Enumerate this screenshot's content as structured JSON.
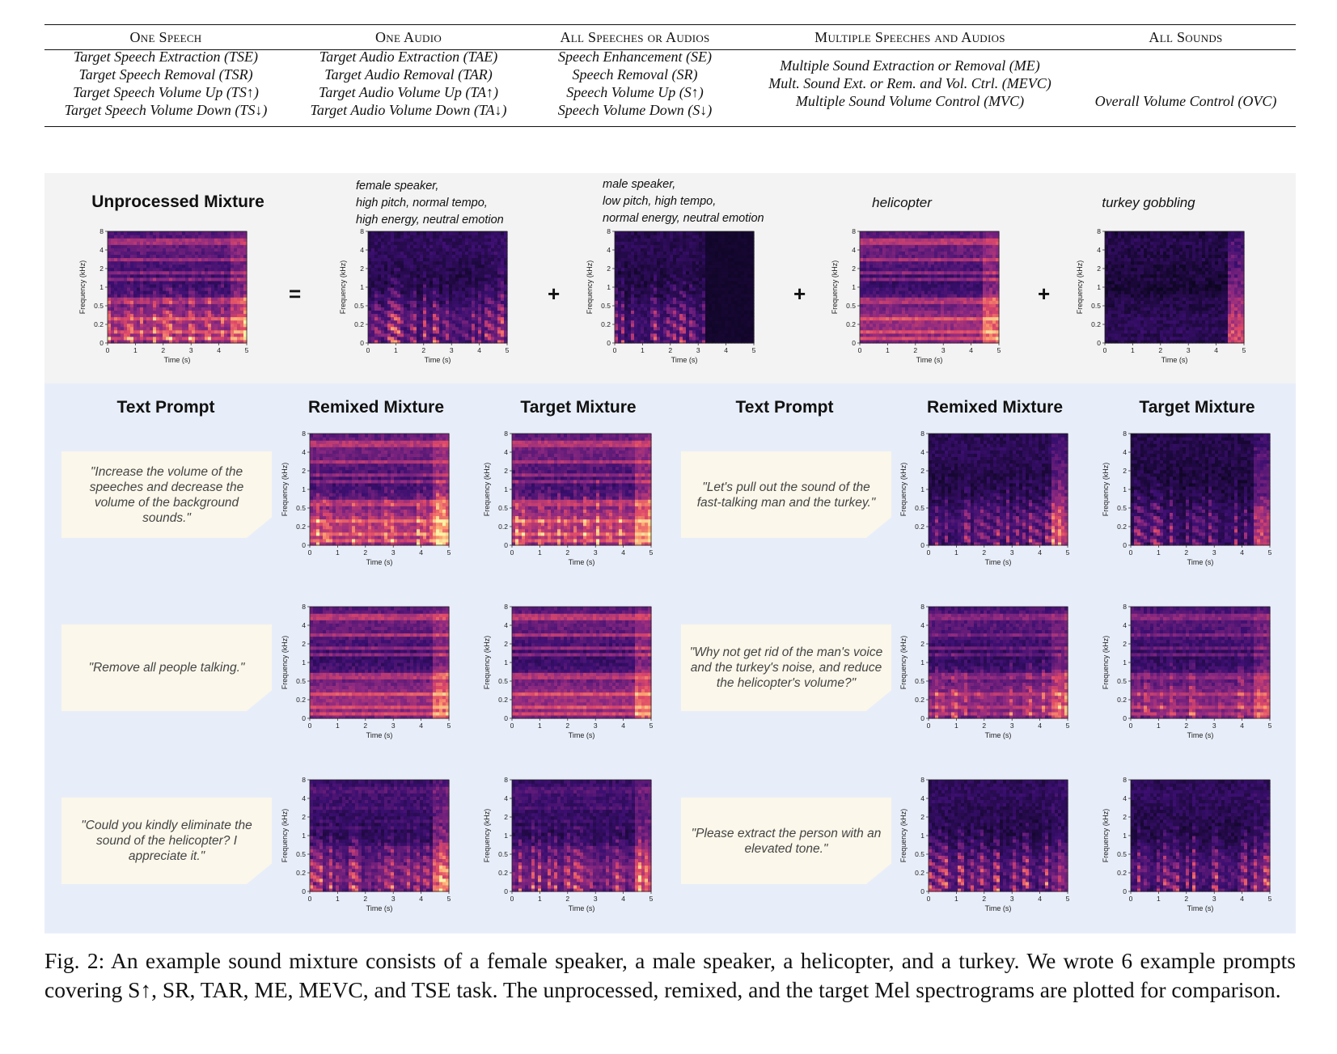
{
  "task_table": {
    "columns": [
      {
        "header": "One Speech",
        "items": [
          "Target Speech Extraction (TSE)",
          "Target Speech Removal (TSR)",
          "Target Speech Volume Up (TS↑)",
          "Target Speech Volume Down (TS↓)"
        ]
      },
      {
        "header": "One Audio",
        "items": [
          "Target Audio Extraction (TAE)",
          "Target Audio Removal (TAR)",
          "Target Audio Volume Up (TA↑)",
          "Target Audio Volume Down (TA↓)"
        ]
      },
      {
        "header": "All Speeches or Audios",
        "items": [
          "Speech Enhancement (SE)",
          "Speech Removal (SR)",
          "Speech Volume Up (S↑)",
          "Speech Volume Down (S↓)"
        ]
      },
      {
        "header": "Multiple Speeches and Audios",
        "items": [
          "Multiple Sound Extraction or Removal (ME)",
          "Mult. Sound Ext. or Rem. and Vol. Ctrl. (MEVC)",
          "Multiple Sound Volume Control (MVC)"
        ]
      },
      {
        "header": "All Sounds",
        "items": [
          "Overall Volume Control (OVC)"
        ]
      }
    ]
  },
  "figure": {
    "mixture_title": "Unprocessed Mixture",
    "operators": {
      "equals": "=",
      "plus": "+"
    },
    "sources": [
      {
        "label_lines": [
          "female speaker,",
          "high pitch, normal tempo,",
          "high energy, neutral emotion"
        ]
      },
      {
        "label_lines": [
          "male speaker,",
          "low pitch, high tempo,",
          "normal energy, neutral emotion"
        ]
      },
      {
        "label_lines": [
          "helicopter"
        ]
      },
      {
        "label_lines": [
          "turkey gobbling"
        ]
      }
    ],
    "column_titles": {
      "prompt": "Text Prompt",
      "remixed": "Remixed Mixture",
      "target": "Target Mixture"
    },
    "prompts_left": [
      "\"Increase the volume of the speeches and decrease the volume of the background sounds.\"",
      "\"Remove all people talking.\"",
      "\"Could you kindly eliminate the sound of the helicopter? I appreciate it.\""
    ],
    "prompts_right": [
      "\"Let's pull out the sound of the fast-talking man and the turkey.\"",
      "\"Why not get rid of the man's voice and the turkey's noise, and reduce the helicopter's volume?\"",
      "\"Please extract the person with an elevated tone.\""
    ],
    "spectrogram_axes": {
      "xlabel": "Time (s)",
      "ylabel": "Frequency (kHz)",
      "xticks": [
        "0",
        "1",
        "2",
        "3",
        "4",
        "5"
      ],
      "yticks": [
        "0",
        "0.2",
        "0.5",
        "1",
        "2",
        "4",
        "8"
      ]
    },
    "colormap": [
      "#0c0520",
      "#3b0f70",
      "#8c2981",
      "#de4968",
      "#fe9f6d",
      "#fcf3a6"
    ]
  },
  "caption": "Fig. 2: An example sound mixture consists of a female speaker, a male speaker, a helicopter, and a turkey. We wrote 6 example prompts covering S↑, SR, TAR, ME, MEVC, and TSE task. The unprocessed, remixed, and the target Mel spectrograms are plotted for comparison."
}
